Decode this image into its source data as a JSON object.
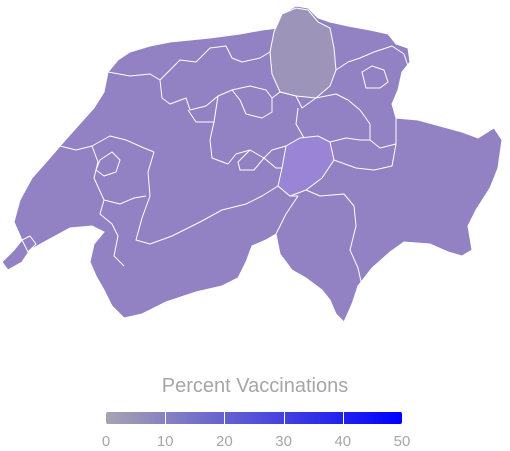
{
  "legend": {
    "title": "Percent Vaccinations",
    "min": 0,
    "max": 50,
    "ticks": [
      "0",
      "10",
      "20",
      "30",
      "40",
      "50"
    ],
    "colors": {
      "low": "#a8a3b1",
      "high": "#0000ff"
    }
  },
  "map": {
    "country_fill": "#9282c4",
    "border_color": "#ffffff",
    "region_fills": {
      "zurich": "#9d95b9",
      "central": "#9a84d6",
      "default": "#9282c4"
    }
  }
}
